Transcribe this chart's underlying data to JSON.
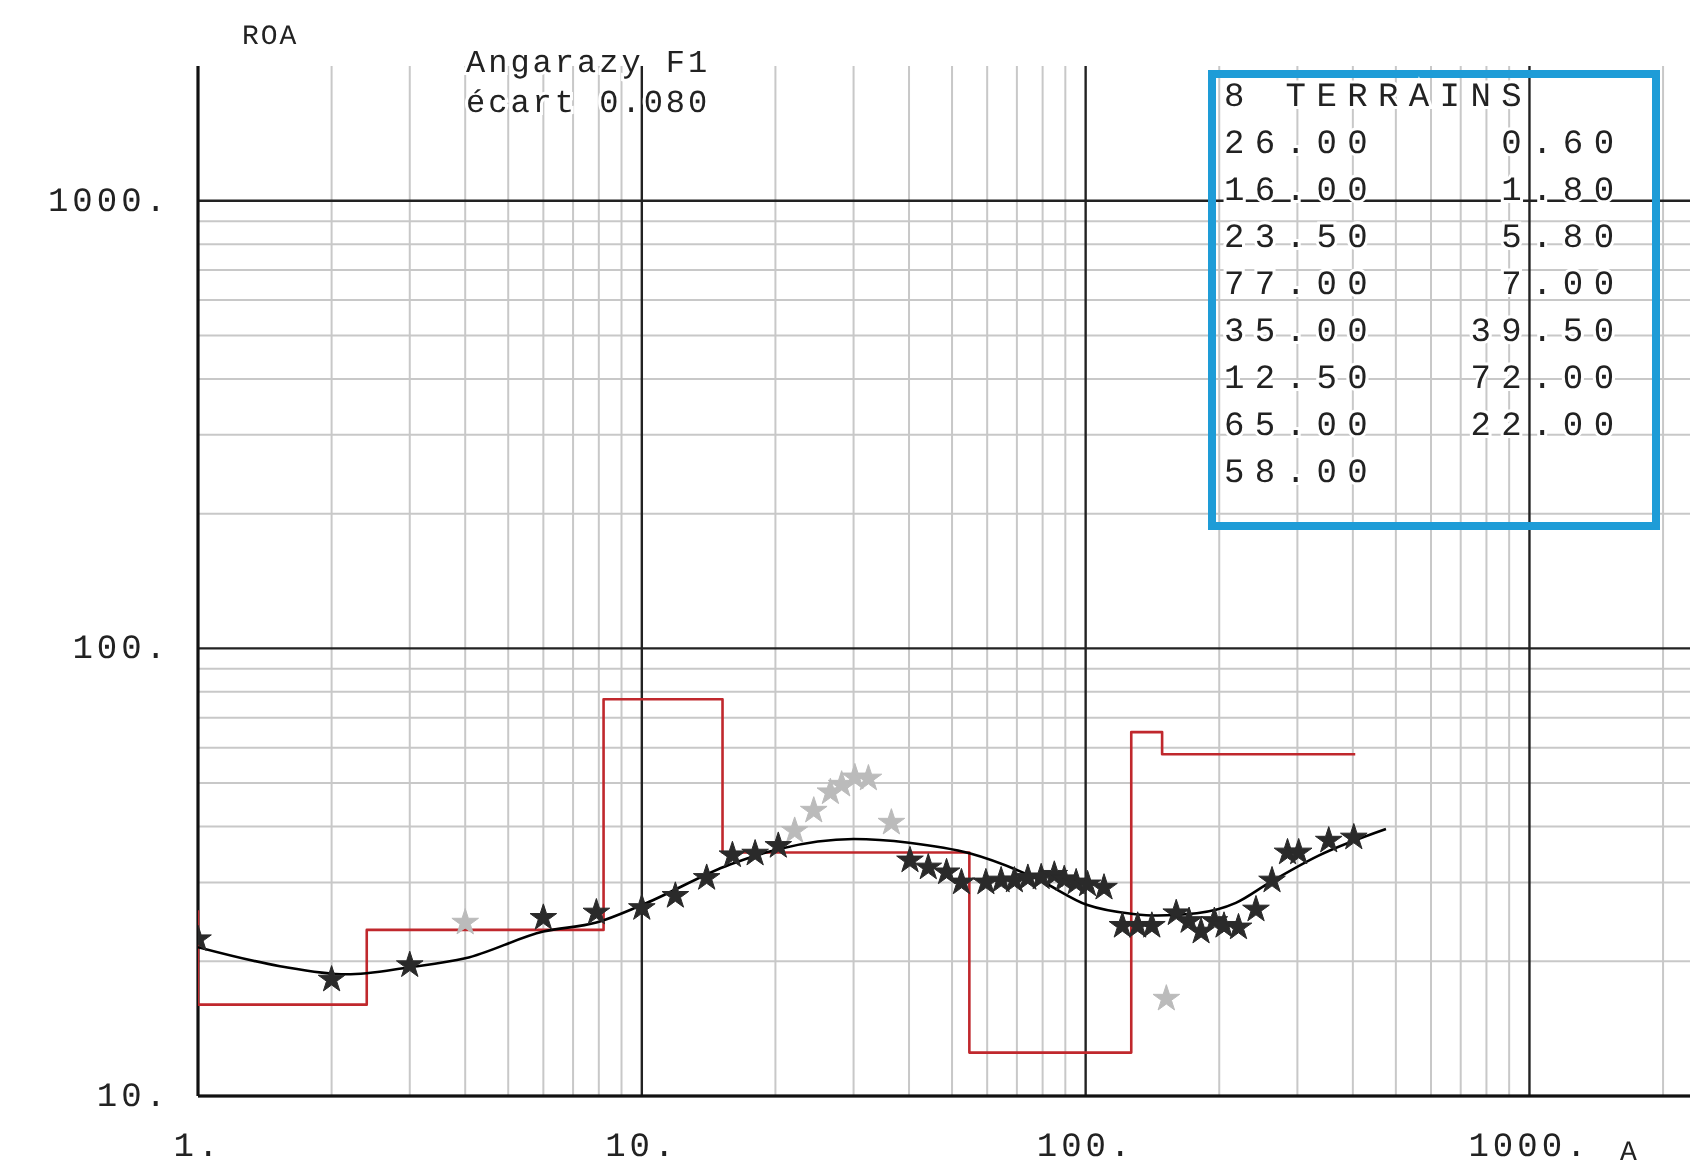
{
  "chart_data": {
    "type": "line",
    "title": "Angarazy F1",
    "subtitle": "écart 0.080",
    "ylabel": "ROA",
    "xlabel": "A",
    "log": "xy",
    "grid": true,
    "marker": "star",
    "xlim": [
      1,
      2300
    ],
    "ylim": [
      10,
      2000
    ],
    "xticks": [
      {
        "value": 1,
        "label": "1."
      },
      {
        "value": 10,
        "label": "10."
      },
      {
        "value": 100,
        "label": "100."
      },
      {
        "value": 1000,
        "label": "1000."
      }
    ],
    "yticks": [
      {
        "value": 10,
        "label": "10."
      },
      {
        "value": 100,
        "label": "100."
      },
      {
        "value": 1000,
        "label": "1000."
      }
    ],
    "annotations": [
      "8 TERRAINS",
      "26.00    0.60",
      "16.00    1.80",
      "23.50    5.80",
      "77.00    7.00",
      "35.00   39.50",
      "12.50   72.00",
      "65.00   22.00",
      "58.00"
    ],
    "series": [
      {
        "type": "step",
        "marker": "none",
        "color": "#c0282d",
        "x": [
          1,
          1,
          2.4,
          8.2,
          15.2,
          54.7,
          126.7,
          148.7,
          405
        ],
        "values": [
          26,
          16,
          23.5,
          77,
          35,
          12.5,
          65,
          58,
          58
        ]
      },
      {
        "marker": "none",
        "color": "#000000",
        "x": [
          1,
          1.53,
          2.16,
          3,
          4,
          6,
          7.9,
          10,
          15.8,
          20.3,
          30,
          40,
          55,
          78,
          101,
          128,
          145,
          178,
          218,
          260,
          334,
          475
        ],
        "values": [
          21.5,
          19.5,
          18.7,
          19.4,
          20.3,
          23.3,
          24.4,
          26.7,
          32.9,
          35.6,
          37.5,
          36.8,
          34.8,
          30.5,
          26.7,
          25.5,
          25.3,
          25.6,
          27,
          30,
          34.4,
          39.5
        ]
      },
      {
        "type": "scatter",
        "color": "#bbbbbb",
        "x": [
          4,
          22.1,
          24.4,
          26.6,
          28.2,
          30.2,
          32.4,
          36.5,
          152
        ],
        "values": [
          24.4,
          39.1,
          43.4,
          47.7,
          49.6,
          51.5,
          51.2,
          40.8,
          16.5
        ]
      },
      {
        "type": "scatter",
        "color": "#2a2a2a",
        "x": [
          1,
          2,
          3,
          6,
          7.9,
          10,
          11.9,
          14,
          16,
          18,
          20.3,
          40.2,
          44.2,
          48.6,
          52.5,
          59.6,
          64.5,
          69.1,
          74.1,
          79.4,
          85,
          89.5,
          95.2,
          101,
          110,
          121,
          131,
          141,
          160,
          171,
          182,
          195,
          205,
          221,
          242,
          263,
          285,
          302,
          353,
          402
        ],
        "values": [
          22.4,
          18.2,
          19.6,
          25,
          25.7,
          26.3,
          28,
          30.7,
          34.5,
          34.8,
          36.2,
          33.6,
          32.4,
          31.6,
          30,
          30,
          30.3,
          30.3,
          30.7,
          30.8,
          31.2,
          30.5,
          30,
          29.7,
          29.2,
          24,
          24,
          24,
          25.6,
          24.6,
          23.3,
          24.6,
          24,
          23.8,
          26.1,
          30.3,
          35,
          35,
          37.2,
          37.8
        ]
      }
    ]
  }
}
